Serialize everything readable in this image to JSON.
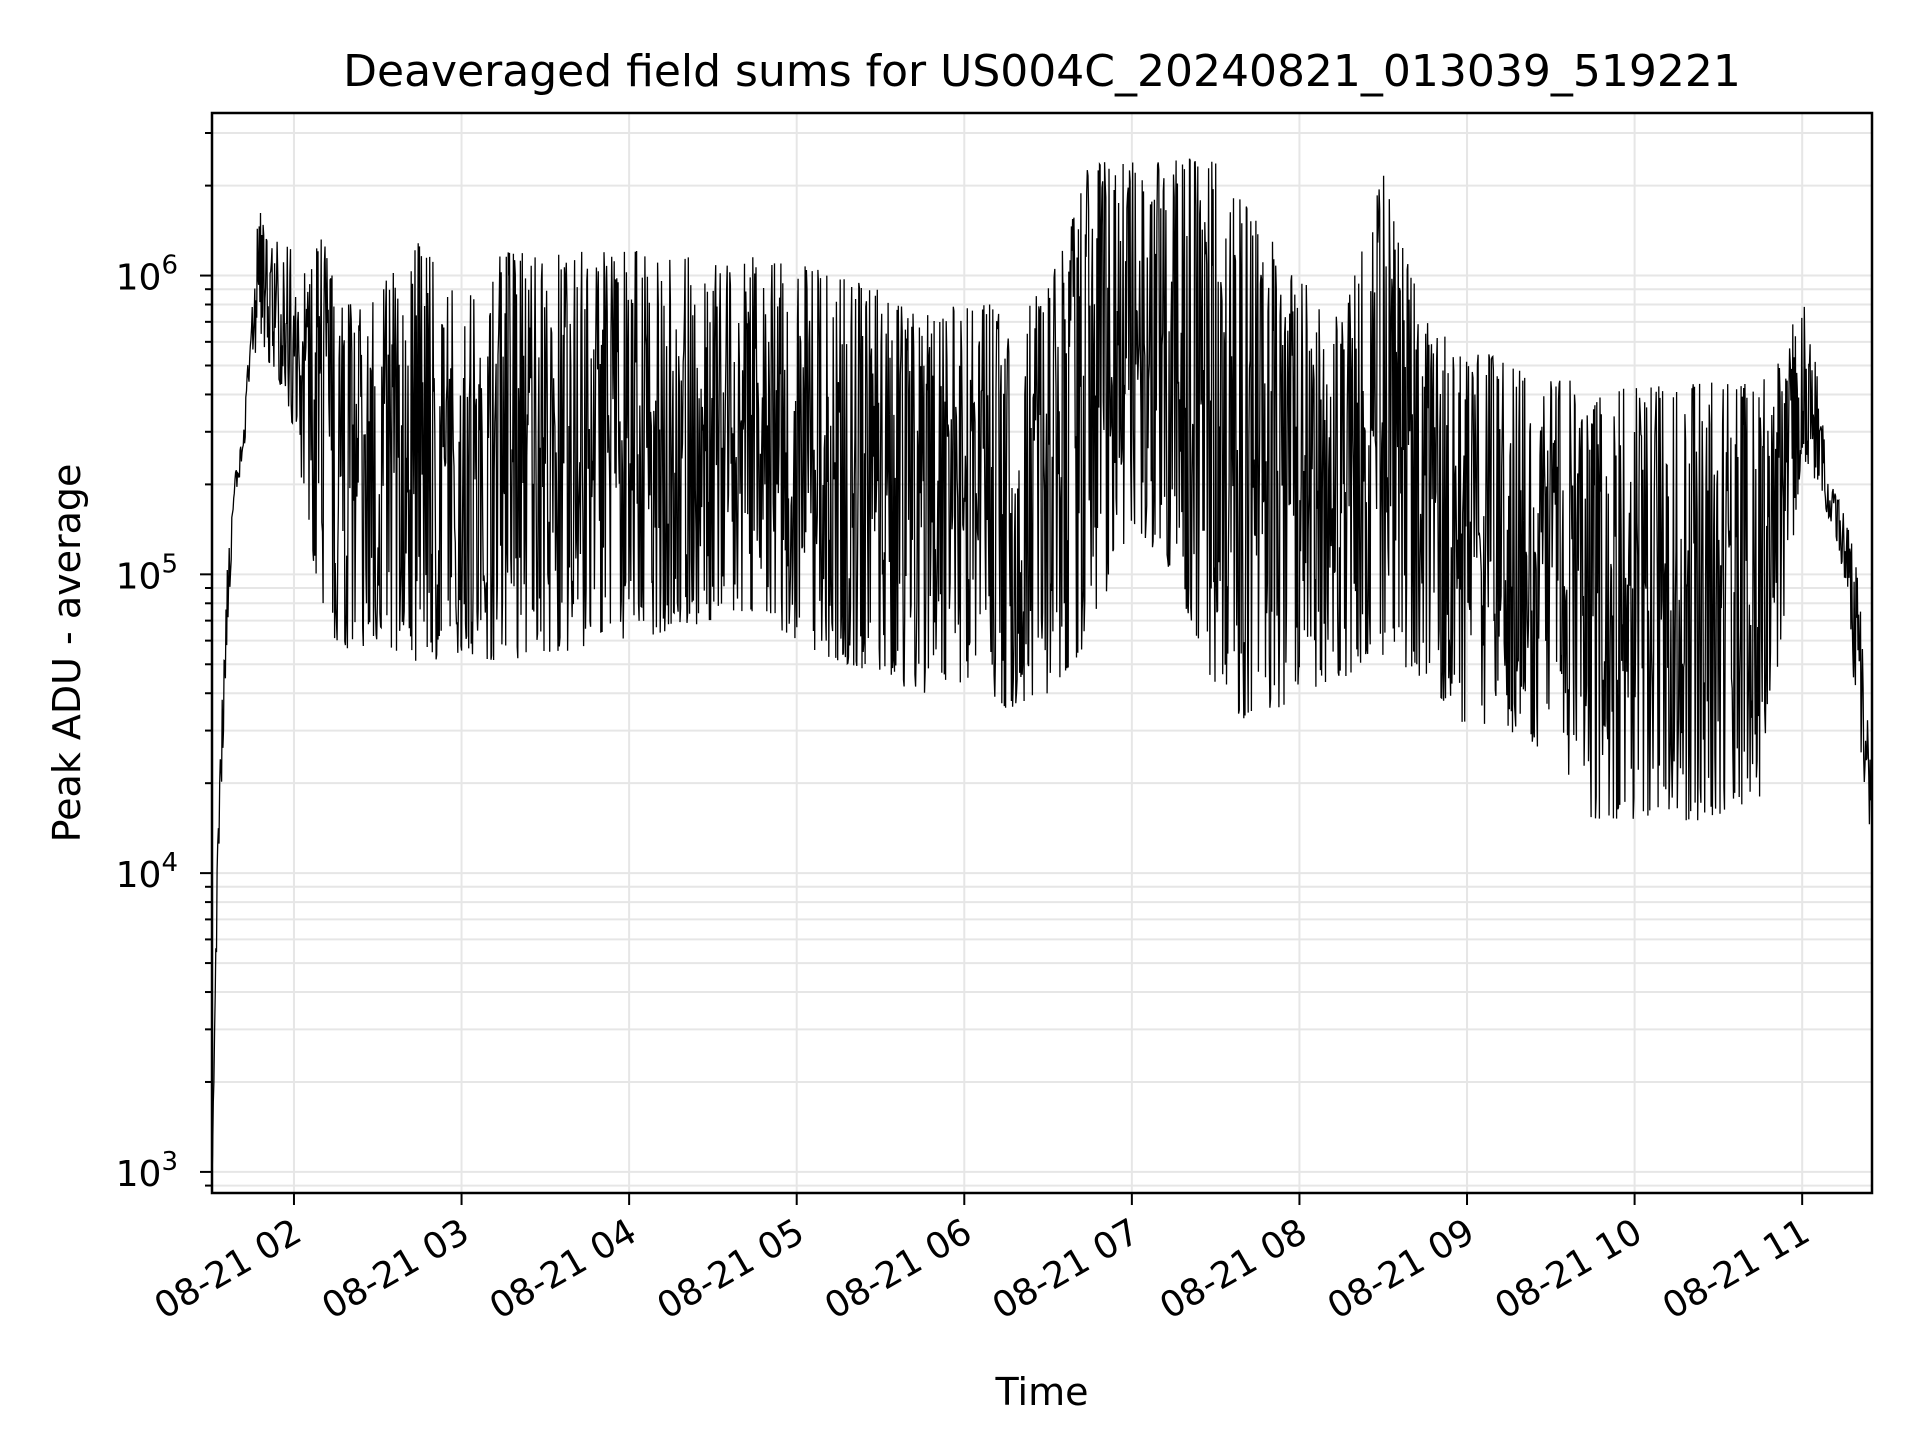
{
  "chart_data": {
    "type": "line",
    "title": "Deaveraged field sums for US004C_20240821_013039_519221",
    "xlabel": "Time",
    "ylabel": "Peak ADU - average",
    "yscale": "log",
    "ylim": [
      850,
      3500000
    ],
    "xlim": [
      "2024-08-21 01:30:39",
      "2024-08-21 11:25:00"
    ],
    "grid": true,
    "x_ticks": [
      "08-21 02",
      "08-21 03",
      "08-21 04",
      "08-21 05",
      "08-21 06",
      "08-21 07",
      "08-21 08",
      "08-21 09",
      "08-21 10",
      "08-21 11"
    ],
    "x_tick_times": [
      "2024-08-21 02:00",
      "2024-08-21 03:00",
      "2024-08-21 04:00",
      "2024-08-21 05:00",
      "2024-08-21 06:00",
      "2024-08-21 07:00",
      "2024-08-21 08:00",
      "2024-08-21 09:00",
      "2024-08-21 10:00",
      "2024-08-21 11:00"
    ],
    "y_ticks": [
      {
        "base": "10",
        "exp": "3",
        "value": 1000
      },
      {
        "base": "10",
        "exp": "4",
        "value": 10000
      },
      {
        "base": "10",
        "exp": "5",
        "value": 100000
      },
      {
        "base": "10",
        "exp": "6",
        "value": 1000000
      }
    ],
    "line_color": "#000000",
    "series": [
      {
        "x": [
          "2024-08-21 01:30:39",
          "2024-08-21 01:33",
          "2024-08-21 01:36",
          "2024-08-21 01:39",
          "2024-08-21 01:42",
          "2024-08-21 01:45",
          "2024-08-21 01:48",
          "2024-08-21 01:51",
          "2024-08-21 01:54",
          "2024-08-21 01:57",
          "2024-08-21 02:00",
          "2024-08-21 02:05",
          "2024-08-21 02:10",
          "2024-08-21 02:15",
          "2024-08-21 02:20",
          "2024-08-21 02:30",
          "2024-08-21 02:45",
          "2024-08-21 03:00",
          "2024-08-21 03:15",
          "2024-08-21 03:30",
          "2024-08-21 03:40",
          "2024-08-21 03:50",
          "2024-08-21 04:00",
          "2024-08-21 04:15",
          "2024-08-21 04:30",
          "2024-08-21 04:45",
          "2024-08-21 05:00",
          "2024-08-21 05:15",
          "2024-08-21 05:30",
          "2024-08-21 05:45",
          "2024-08-21 06:00",
          "2024-08-21 06:15",
          "2024-08-21 06:30",
          "2024-08-21 06:45",
          "2024-08-21 07:00",
          "2024-08-21 07:15",
          "2024-08-21 07:30",
          "2024-08-21 07:45",
          "2024-08-21 08:00",
          "2024-08-21 08:15",
          "2024-08-21 08:30",
          "2024-08-21 08:45",
          "2024-08-21 09:00",
          "2024-08-21 09:15",
          "2024-08-21 09:30",
          "2024-08-21 09:45",
          "2024-08-21 10:00",
          "2024-08-21 10:15",
          "2024-08-21 10:30",
          "2024-08-21 10:45",
          "2024-08-21 10:55",
          "2024-08-21 11:00",
          "2024-08-21 11:05",
          "2024-08-21 11:10",
          "2024-08-21 11:15",
          "2024-08-21 11:20",
          "2024-08-21 11:25"
        ],
        "low": [
          900,
          10000,
          60000,
          180000,
          250000,
          550000,
          550000,
          500000,
          450000,
          400000,
          300000,
          150000,
          70000,
          60000,
          55000,
          60000,
          50000,
          55000,
          50000,
          55000,
          55000,
          60000,
          60000,
          65000,
          70000,
          75000,
          60000,
          50000,
          45000,
          40000,
          40000,
          35000,
          40000,
          60000,
          150000,
          100000,
          40000,
          30000,
          40000,
          45000,
          50000,
          45000,
          30000,
          30000,
          25000,
          15000,
          15000,
          15000,
          15000,
          18000,
          90000,
          250000,
          200000,
          150000,
          100000,
          30000,
          12000
        ],
        "high": [
          1000,
          20000,
          100000,
          220000,
          300000,
          900000,
          1900000,
          1200000,
          1300000,
          1300000,
          1200000,
          1000000,
          1400000,
          900000,
          800000,
          900000,
          1300000,
          800000,
          1200000,
          1200000,
          1200000,
          1200000,
          1200000,
          1250000,
          1200000,
          1150000,
          1100000,
          1000000,
          900000,
          800000,
          800000,
          800000,
          900000,
          2400000,
          2400000,
          2500000,
          2400000,
          1500000,
          1000000,
          700000,
          2200000,
          700000,
          600000,
          500000,
          450000,
          450000,
          420000,
          430000,
          440000,
          430000,
          600000,
          900000,
          500000,
          200000,
          170000,
          100000,
          20000
        ]
      }
    ]
  }
}
